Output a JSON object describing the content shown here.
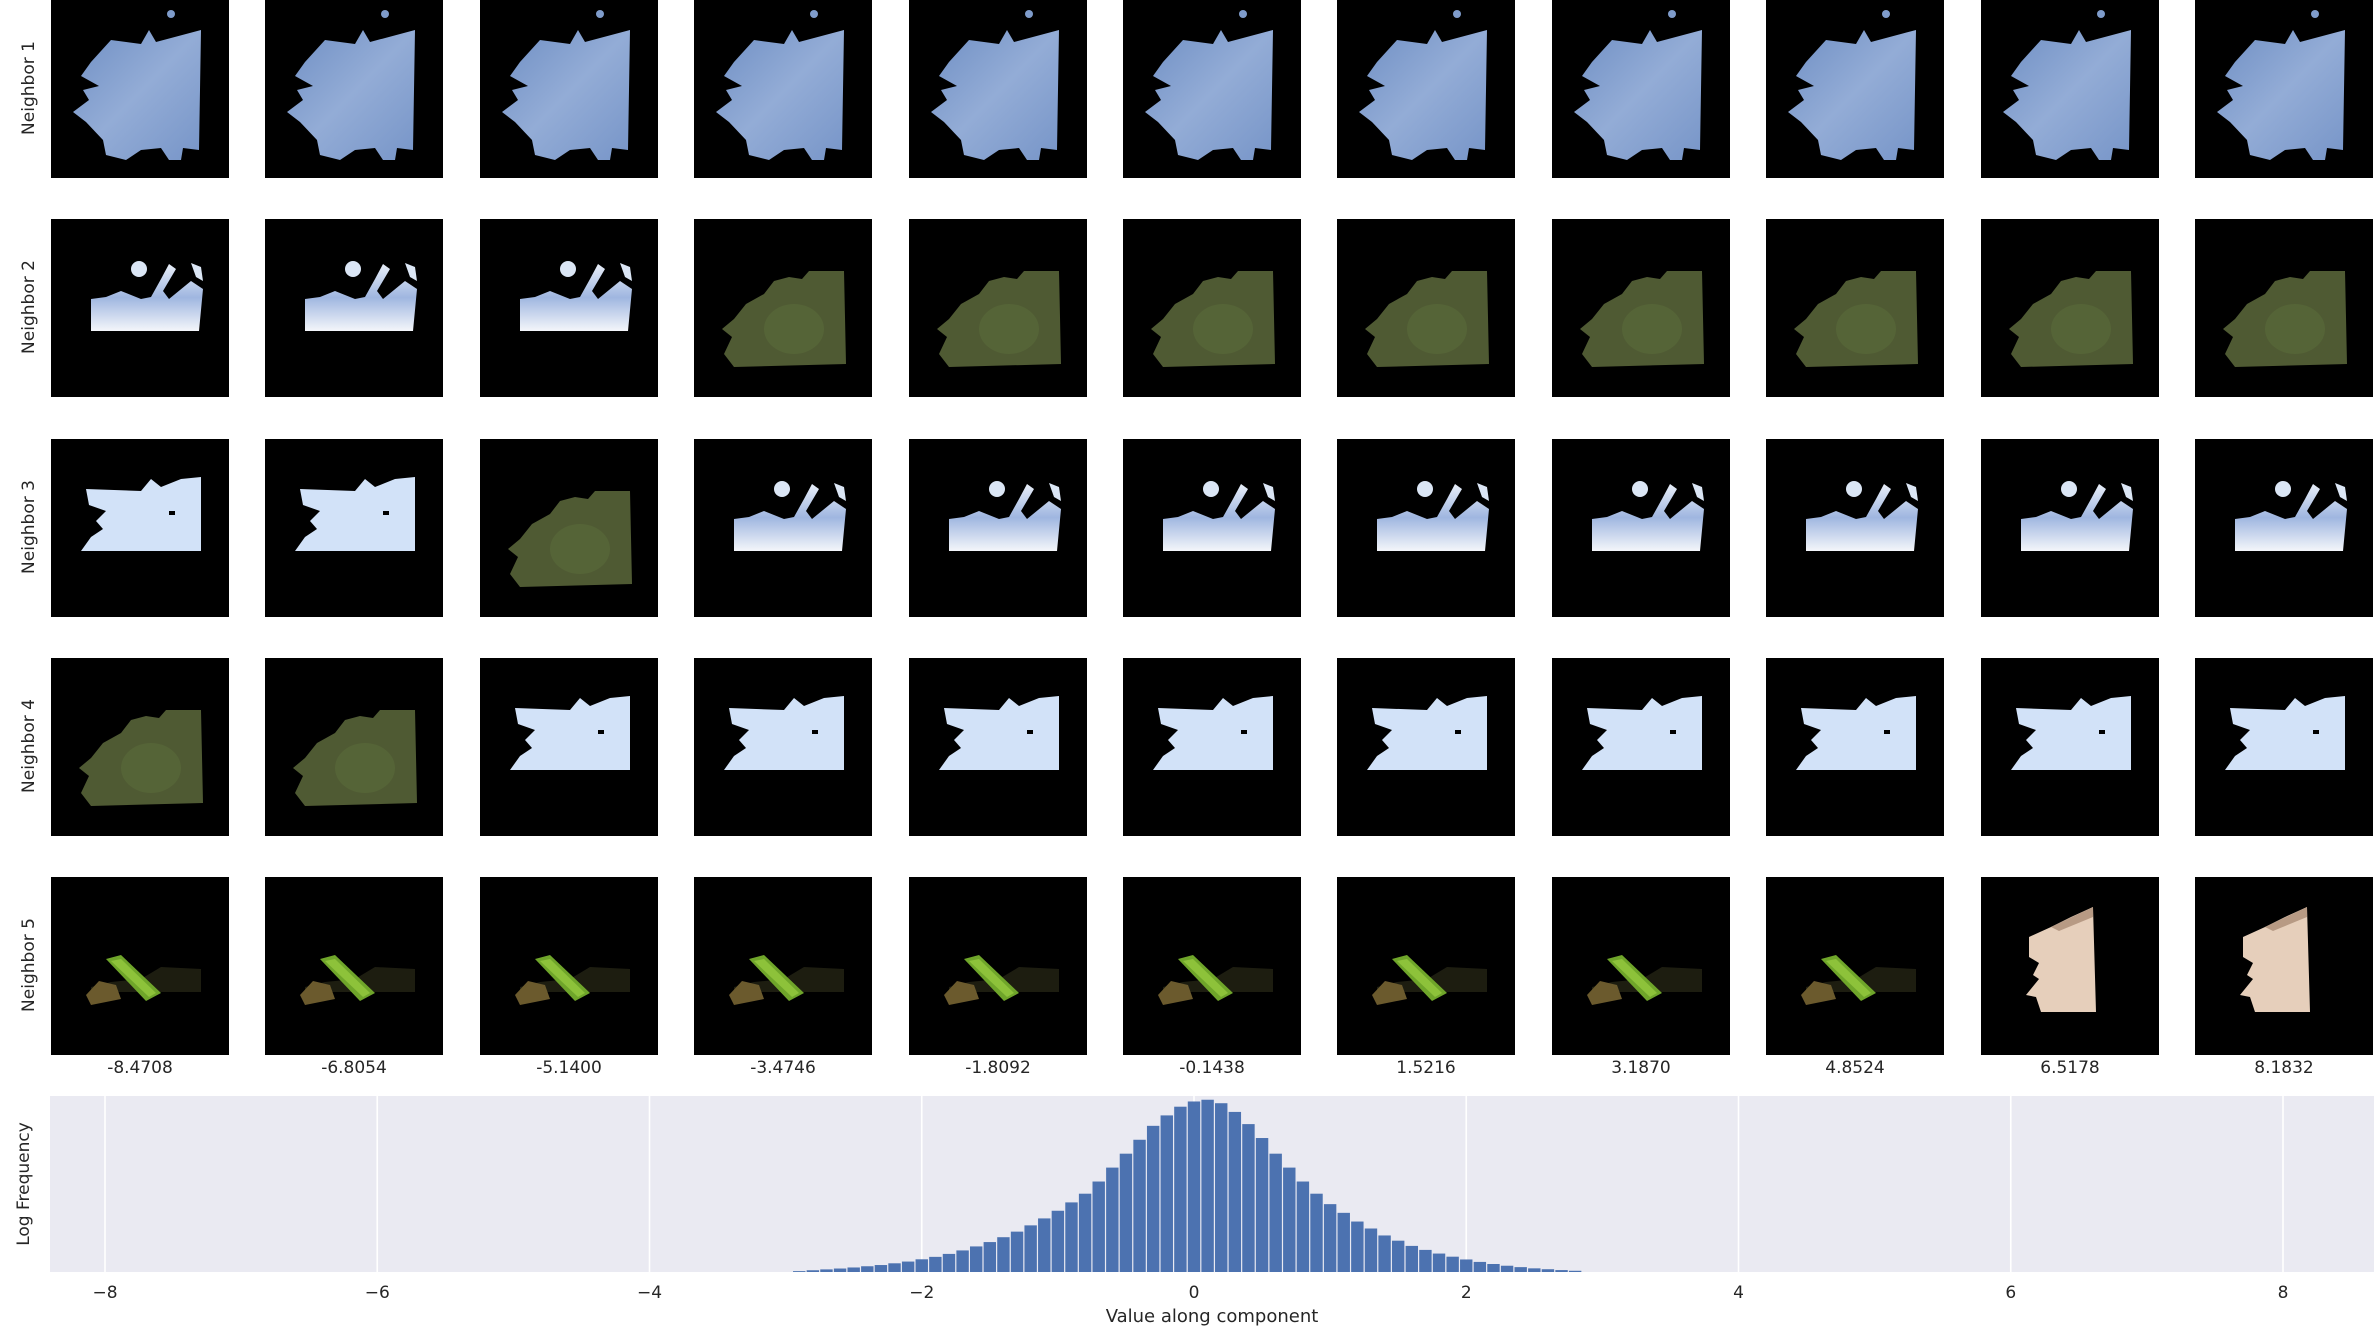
{
  "rows": [
    {
      "label": "Neighbor 1",
      "cells": [
        "sky",
        "sky",
        "sky",
        "sky",
        "sky",
        "sky",
        "sky",
        "sky",
        "sky",
        "sky",
        "sky"
      ]
    },
    {
      "label": "Neighbor 2",
      "cells": [
        "cloud",
        "cloud",
        "cloud",
        "grass",
        "grass",
        "grass",
        "grass",
        "grass",
        "grass",
        "grass",
        "grass"
      ]
    },
    {
      "label": "Neighbor 3",
      "cells": [
        "pale-sky",
        "pale-sky",
        "grass",
        "cloud",
        "cloud",
        "cloud",
        "cloud",
        "cloud",
        "cloud",
        "cloud",
        "cloud"
      ]
    },
    {
      "label": "Neighbor 4",
      "cells": [
        "grass",
        "grass",
        "pale-sky",
        "pale-sky",
        "pale-sky",
        "pale-sky",
        "pale-sky",
        "pale-sky",
        "pale-sky",
        "pale-sky",
        "pale-sky"
      ]
    },
    {
      "label": "Neighbor 5",
      "cells": [
        "leaf",
        "leaf",
        "leaf",
        "leaf",
        "leaf",
        "leaf",
        "leaf",
        "leaf",
        "leaf",
        "skin",
        "skin"
      ]
    }
  ],
  "column_values": [
    "-8.4708",
    "-6.8054",
    "-5.1400",
    "-3.4746",
    "-1.8092",
    "-0.1438",
    "1.5216",
    "3.1870",
    "4.8524",
    "6.5178",
    "8.1832"
  ],
  "colors": {
    "sky": "#7f9ccb",
    "cloud": "#dbe6f5",
    "grass": "#4f5a33",
    "pale-sky": "#d2e2f8",
    "leaf": "#6fa52a",
    "skin": "#e6cfbb",
    "hist_bg": "#eaeaf2",
    "bar": "#4c72b0"
  },
  "chart_data": {
    "type": "bar",
    "xlabel": "Value along component",
    "ylabel": "Log Frequency",
    "xlim": [
      -8.4,
      8.9
    ],
    "xticks": [
      -8,
      -6,
      -4,
      -2,
      0,
      2,
      4,
      6,
      8
    ],
    "xtick_labels": [
      "−8",
      "−6",
      "−4",
      "−2",
      "0",
      "2",
      "4",
      "6",
      "8"
    ],
    "grid": true,
    "bin_width": 0.1,
    "bins": [
      {
        "x": -2.9,
        "y": 0.005
      },
      {
        "x": -2.8,
        "y": 0.01
      },
      {
        "x": -2.7,
        "y": 0.015
      },
      {
        "x": -2.6,
        "y": 0.02
      },
      {
        "x": -2.5,
        "y": 0.026
      },
      {
        "x": -2.4,
        "y": 0.033
      },
      {
        "x": -2.3,
        "y": 0.04
      },
      {
        "x": -2.2,
        "y": 0.05
      },
      {
        "x": -2.1,
        "y": 0.06
      },
      {
        "x": -2.0,
        "y": 0.073
      },
      {
        "x": -1.9,
        "y": 0.087
      },
      {
        "x": -1.8,
        "y": 0.104
      },
      {
        "x": -1.7,
        "y": 0.124
      },
      {
        "x": -1.6,
        "y": 0.147
      },
      {
        "x": -1.5,
        "y": 0.172
      },
      {
        "x": -1.4,
        "y": 0.2
      },
      {
        "x": -1.3,
        "y": 0.232
      },
      {
        "x": -1.2,
        "y": 0.268
      },
      {
        "x": -1.1,
        "y": 0.308
      },
      {
        "x": -1.0,
        "y": 0.352
      },
      {
        "x": -0.9,
        "y": 0.4
      },
      {
        "x": -0.8,
        "y": 0.45
      },
      {
        "x": -0.7,
        "y": 0.52
      },
      {
        "x": -0.6,
        "y": 0.6
      },
      {
        "x": -0.5,
        "y": 0.68
      },
      {
        "x": -0.4,
        "y": 0.76
      },
      {
        "x": -0.3,
        "y": 0.84
      },
      {
        "x": -0.2,
        "y": 0.9
      },
      {
        "x": -0.1,
        "y": 0.95
      },
      {
        "x": 0.0,
        "y": 0.98
      },
      {
        "x": 0.1,
        "y": 0.99
      },
      {
        "x": 0.2,
        "y": 0.97
      },
      {
        "x": 0.3,
        "y": 0.92
      },
      {
        "x": 0.4,
        "y": 0.85
      },
      {
        "x": 0.5,
        "y": 0.77
      },
      {
        "x": 0.6,
        "y": 0.68
      },
      {
        "x": 0.7,
        "y": 0.6
      },
      {
        "x": 0.8,
        "y": 0.52
      },
      {
        "x": 0.9,
        "y": 0.45
      },
      {
        "x": 1.0,
        "y": 0.39
      },
      {
        "x": 1.1,
        "y": 0.34
      },
      {
        "x": 1.2,
        "y": 0.29
      },
      {
        "x": 1.3,
        "y": 0.25
      },
      {
        "x": 1.4,
        "y": 0.21
      },
      {
        "x": 1.5,
        "y": 0.18
      },
      {
        "x": 1.6,
        "y": 0.15
      },
      {
        "x": 1.7,
        "y": 0.127
      },
      {
        "x": 1.8,
        "y": 0.106
      },
      {
        "x": 1.9,
        "y": 0.088
      },
      {
        "x": 2.0,
        "y": 0.072
      },
      {
        "x": 2.1,
        "y": 0.058
      },
      {
        "x": 2.2,
        "y": 0.046
      },
      {
        "x": 2.3,
        "y": 0.036
      },
      {
        "x": 2.4,
        "y": 0.028
      },
      {
        "x": 2.5,
        "y": 0.021
      },
      {
        "x": 2.6,
        "y": 0.016
      },
      {
        "x": 2.7,
        "y": 0.011
      },
      {
        "x": 2.8,
        "y": 0.007
      }
    ]
  }
}
